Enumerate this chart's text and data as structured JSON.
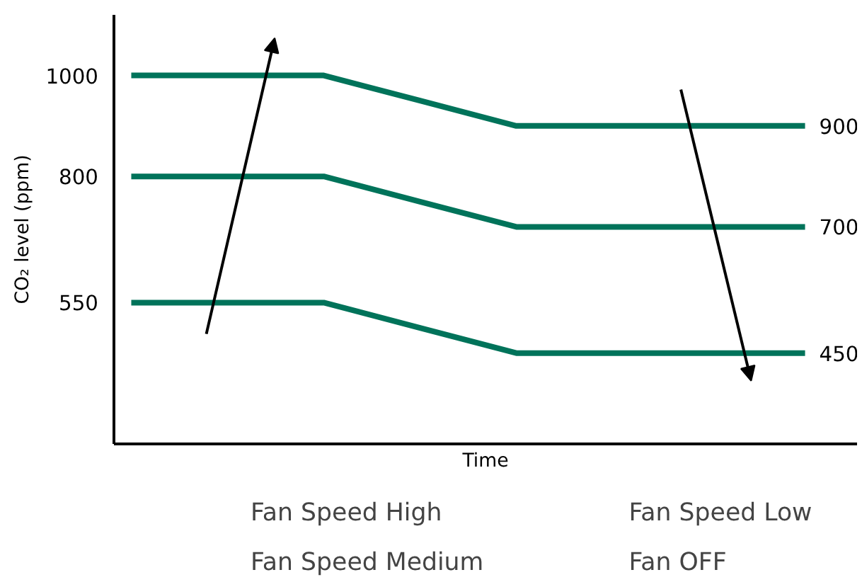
{
  "chart_data": {
    "type": "line",
    "xlabel": "Time",
    "ylabel": "CO₂ level (ppm)",
    "categories": [
      null,
      null,
      null,
      null,
      null,
      null,
      null,
      null
    ],
    "series": [
      {
        "color": "#00735a",
        "values": [
          1000,
          1000,
          1000,
          950,
          900,
          900,
          900,
          900
        ],
        "value_labels": [
          null,
          null,
          null,
          null,
          null,
          null,
          null,
          "900"
        ]
      },
      {
        "color": "#00735a",
        "values": [
          800,
          800,
          800,
          750,
          700,
          700,
          700,
          700
        ],
        "value_labels": [
          null,
          null,
          null,
          null,
          null,
          null,
          null,
          "700"
        ]
      },
      {
        "color": "#00735a",
        "values": [
          550,
          550,
          550,
          500,
          450,
          450,
          450,
          450
        ],
        "value_labels": [
          null,
          null,
          null,
          null,
          null,
          null,
          null,
          "450"
        ]
      }
    ],
    "ylim": [
      270,
      1120
    ],
    "yticks": [
      550,
      800,
      1000
    ],
    "tick_labels": "y",
    "grid": false,
    "marker": "none",
    "line_style": "solid",
    "annotations": [
      "Fan Speed High",
      "Fan Speed Medium",
      "Fan Speed Low",
      "Fan OFF"
    ]
  }
}
